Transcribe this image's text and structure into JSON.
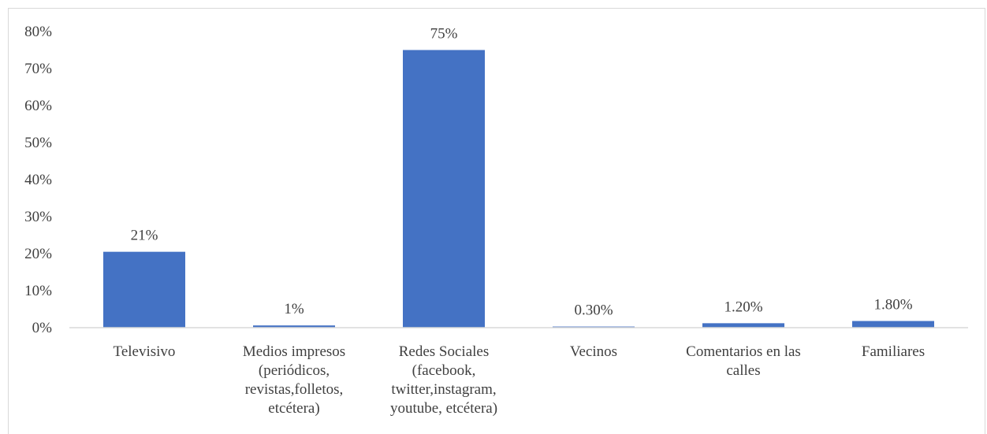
{
  "chart_data": {
    "type": "bar",
    "categories": [
      [
        "Televisivo"
      ],
      [
        "Medios impresos",
        "(periódicos,",
        "revistas,folletos,",
        "etcétera)"
      ],
      [
        "Redes Sociales",
        "(facebook,",
        "twitter,instagram,",
        "youtube, etcétera)"
      ],
      [
        "Vecinos"
      ],
      [
        "Comentarios en las",
        "calles"
      ],
      [
        "Familiares"
      ]
    ],
    "values": [
      0.205,
      0.006,
      0.75,
      0.003,
      0.012,
      0.018
    ],
    "data_labels": [
      "21%",
      "1%",
      "75%",
      "0.30%",
      "1.20%",
      "1.80%"
    ],
    "y_ticks": [
      "0%",
      "10%",
      "20%",
      "30%",
      "40%",
      "50%",
      "60%",
      "70%",
      "80%"
    ],
    "ylim": [
      0,
      0.8
    ],
    "bar_color": "#4472c4",
    "axis_color": "#d9d9d9",
    "grid": false,
    "legend": "none",
    "title": "",
    "xlabel": "",
    "ylabel": ""
  }
}
